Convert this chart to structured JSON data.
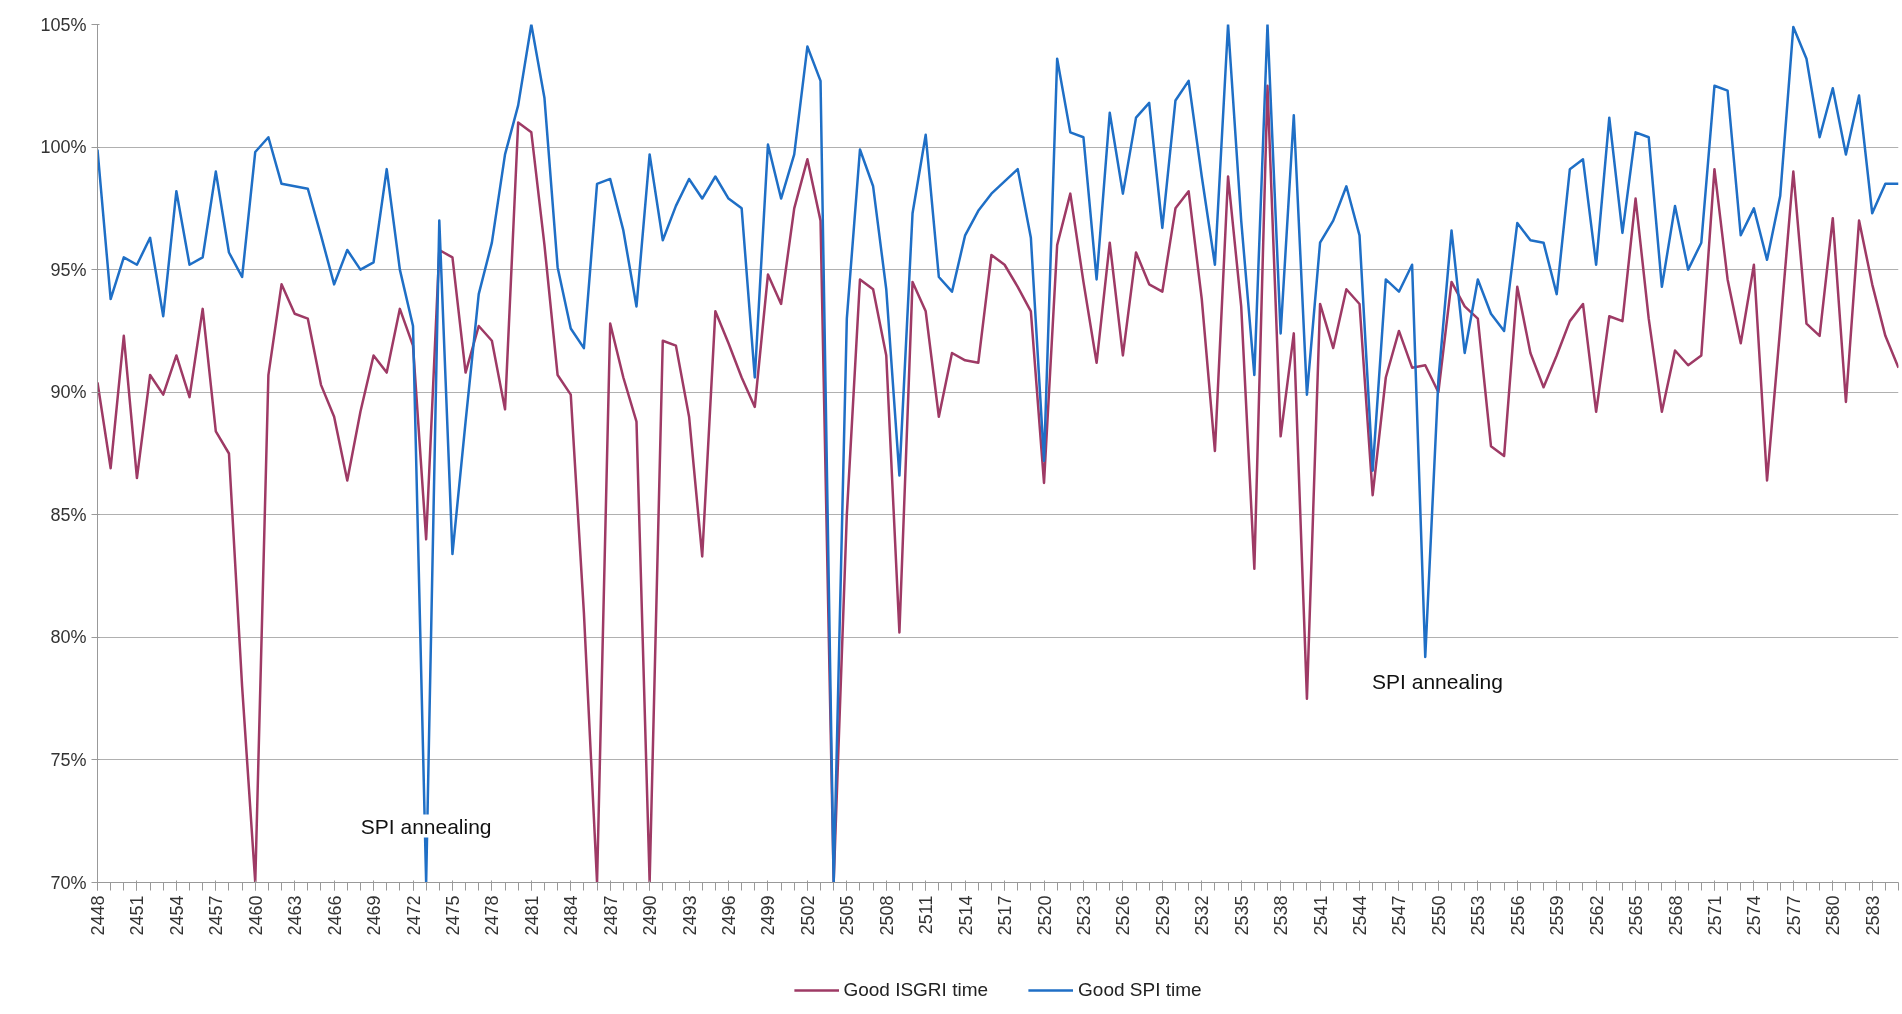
{
  "chart_data": {
    "type": "line",
    "x": [
      2448,
      2449,
      2450,
      2451,
      2452,
      2453,
      2454,
      2455,
      2456,
      2457,
      2458,
      2459,
      2460,
      2461,
      2462,
      2463,
      2464,
      2465,
      2466,
      2467,
      2468,
      2469,
      2470,
      2471,
      2472,
      2473,
      2474,
      2475,
      2476,
      2477,
      2478,
      2479,
      2480,
      2481,
      2482,
      2483,
      2484,
      2485,
      2486,
      2487,
      2488,
      2489,
      2490,
      2491,
      2492,
      2493,
      2494,
      2495,
      2496,
      2497,
      2498,
      2499,
      2500,
      2501,
      2502,
      2503,
      2504,
      2505,
      2506,
      2507,
      2508,
      2509,
      2510,
      2511,
      2512,
      2513,
      2514,
      2515,
      2516,
      2517,
      2518,
      2519,
      2520,
      2521,
      2522,
      2523,
      2524,
      2525,
      2526,
      2527,
      2528,
      2529,
      2530,
      2531,
      2532,
      2533,
      2534,
      2535,
      2536,
      2537,
      2538,
      2539,
      2540,
      2541,
      2542,
      2543,
      2544,
      2545,
      2546,
      2547,
      2548,
      2549,
      2550,
      2551,
      2552,
      2553,
      2554,
      2555,
      2556,
      2557,
      2558,
      2559,
      2560,
      2561,
      2562,
      2563,
      2564,
      2565,
      2566,
      2567,
      2568,
      2569,
      2570,
      2571,
      2572,
      2573,
      2574,
      2575,
      2576,
      2577,
      2578,
      2579,
      2580,
      2581,
      2582,
      2583,
      2584,
      2585
    ],
    "series": [
      {
        "name": "Good ISGRI time",
        "color": "#9e3a65",
        "values": [
          90.4,
          86.9,
          92.3,
          86.5,
          90.7,
          89.9,
          91.5,
          89.8,
          93.4,
          88.4,
          87.5,
          78,
          70,
          90.7,
          94.4,
          93.2,
          93.0,
          90.3,
          89.0,
          86.4,
          89.2,
          91.5,
          90.8,
          93.4,
          91.9,
          84.0,
          95.8,
          95.5,
          90.8,
          92.7,
          92.1,
          89.3,
          101.0,
          100.6,
          96.0,
          90.7,
          89.9,
          81,
          70,
          92.8,
          90.6,
          88.8,
          70,
          92.1,
          91.9,
          89.0,
          83.3,
          93.3,
          92.0,
          90.6,
          89.4,
          94.8,
          93.6,
          97.5,
          99.5,
          97.0,
          70,
          85,
          94.6,
          94.2,
          91.5,
          80.2,
          94.5,
          93.3,
          89.0,
          91.6,
          91.3,
          91.2,
          95.6,
          95.2,
          94.3,
          93.3,
          86.3,
          96.0,
          98.1,
          94.5,
          91.2,
          96.1,
          91.5,
          95.7,
          94.4,
          94.1,
          97.5,
          98.2,
          93.8,
          87.6,
          98.8,
          93.5,
          82.8,
          102.5,
          88.2,
          92.4,
          77.5,
          93.6,
          91.8,
          94.2,
          93.6,
          85.8,
          90.6,
          92.5,
          91.0,
          91.1,
          90.0,
          94.5,
          93.5,
          93.0,
          87.8,
          87.4,
          94.3,
          91.6,
          90.2,
          91.5,
          92.9,
          93.6,
          89.2,
          93.1,
          92.9,
          97.9,
          93.0,
          89.2,
          91.7,
          91.1,
          91.5,
          99.1,
          94.6,
          92.0,
          95.2,
          86.4,
          92.6,
          99.0,
          92.8,
          92.3,
          97.1,
          89.6,
          97.0,
          94.4,
          92.3,
          91.0
        ]
      },
      {
        "name": "Good SPI time",
        "color": "#1f6fc6",
        "values": [
          99.9,
          93.8,
          95.5,
          95.2,
          96.3,
          93.1,
          98.2,
          95.2,
          95.5,
          99.0,
          95.7,
          94.7,
          99.8,
          100.4,
          98.5,
          98.4,
          98.3,
          96.4,
          94.4,
          95.8,
          95.0,
          95.3,
          99.1,
          95.0,
          92.7,
          70,
          97.0,
          83.4,
          88.8,
          94.0,
          96.1,
          99.7,
          101.7,
          105,
          102.0,
          95.1,
          92.6,
          91.8,
          98.5,
          98.7,
          96.6,
          93.5,
          99.7,
          96.2,
          97.6,
          98.7,
          97.9,
          98.8,
          97.9,
          97.5,
          90.6,
          100.1,
          97.9,
          99.7,
          104.1,
          102.7,
          70,
          93.0,
          99.9,
          98.4,
          94.2,
          86.6,
          97.3,
          100.5,
          94.7,
          94.1,
          96.4,
          97.4,
          98.1,
          98.6,
          99.1,
          96.3,
          87.2,
          103.6,
          100.6,
          100.4,
          94.6,
          101.4,
          98.1,
          101.2,
          101.8,
          96.7,
          101.9,
          102.7,
          98.8,
          95.2,
          105,
          97.0,
          90.7,
          105,
          92.4,
          101.3,
          89.9,
          96.1,
          97.0,
          98.4,
          96.4,
          86.8,
          94.6,
          94.1,
          95.2,
          79.2,
          90.5,
          96.6,
          91.6,
          94.6,
          93.2,
          92.5,
          96.9,
          96.2,
          96.1,
          94.0,
          99.1,
          99.5,
          95.2,
          101.2,
          96.5,
          100.6,
          100.4,
          94.3,
          97.6,
          95.0,
          96.1,
          102.5,
          102.3,
          96.4,
          97.5,
          95.4,
          98.0,
          104.9,
          103.6,
          100.4,
          102.4,
          99.7,
          102.1,
          97.3,
          98.5,
          98.5
        ]
      }
    ],
    "xlim": [
      2448,
      2585
    ],
    "xticks": [
      2448,
      2451,
      2454,
      2457,
      2460,
      2463,
      2466,
      2469,
      2472,
      2475,
      2478,
      2481,
      2484,
      2487,
      2490,
      2493,
      2496,
      2499,
      2502,
      2505,
      2508,
      2511,
      2514,
      2517,
      2520,
      2523,
      2526,
      2529,
      2532,
      2535,
      2538,
      2541,
      2544,
      2547,
      2550,
      2553,
      2556,
      2559,
      2562,
      2565,
      2568,
      2571,
      2574,
      2577,
      2580,
      2583
    ],
    "ylim": [
      70,
      105
    ],
    "yticks": [
      {
        "value": 70,
        "label": "70%"
      },
      {
        "value": 75,
        "label": "75%"
      },
      {
        "value": 80,
        "label": "80%"
      },
      {
        "value": 85,
        "label": "85%"
      },
      {
        "value": 90,
        "label": "90%"
      },
      {
        "value": 95,
        "label": "95%"
      },
      {
        "value": 100,
        "label": "100%"
      },
      {
        "value": 105,
        "label": "105%"
      }
    ],
    "annotations": [
      {
        "text": "SPI annealing",
        "x": 2473,
        "y": 72.3
      },
      "SPI annealing"
    ],
    "grid": "y",
    "legend": "bottom",
    "marker": "none",
    "line_style": "solid"
  }
}
